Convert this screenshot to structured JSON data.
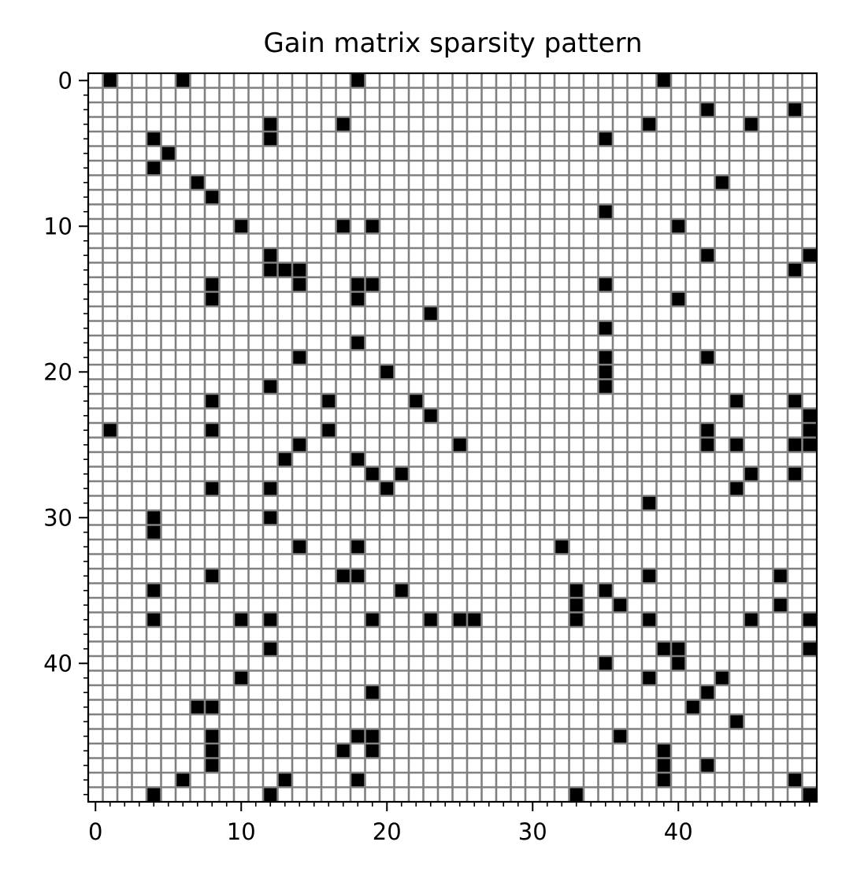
{
  "chart_data": {
    "type": "heatmap",
    "subtype": "sparsity-pattern (spy plot)",
    "title": "Gain matrix sparsity pattern",
    "xlabel": "",
    "ylabel": "",
    "rows": 50,
    "cols": 50,
    "x_ticks": [
      0,
      10,
      20,
      30,
      40
    ],
    "y_ticks": [
      0,
      10,
      20,
      30,
      40
    ],
    "x_minor_ticks_every": 1,
    "y_minor_ticks_every": 1,
    "xlim": [
      -0.5,
      49.5
    ],
    "ylim": [
      49.5,
      -0.5
    ],
    "y_axis_inverted": true,
    "grid": true,
    "colors": {
      "nonzero": "#000000",
      "zero": "#ffffff",
      "grid": "#808080"
    },
    "nonzero_entries": [
      [
        0,
        1
      ],
      [
        0,
        6
      ],
      [
        0,
        18
      ],
      [
        0,
        39
      ],
      [
        2,
        42
      ],
      [
        2,
        48
      ],
      [
        3,
        12
      ],
      [
        3,
        17
      ],
      [
        3,
        38
      ],
      [
        3,
        45
      ],
      [
        4,
        4
      ],
      [
        4,
        12
      ],
      [
        4,
        35
      ],
      [
        5,
        5
      ],
      [
        6,
        4
      ],
      [
        7,
        7
      ],
      [
        7,
        43
      ],
      [
        8,
        8
      ],
      [
        9,
        35
      ],
      [
        10,
        10
      ],
      [
        10,
        17
      ],
      [
        10,
        19
      ],
      [
        10,
        40
      ],
      [
        12,
        12
      ],
      [
        12,
        42
      ],
      [
        12,
        49
      ],
      [
        13,
        12
      ],
      [
        13,
        13
      ],
      [
        13,
        14
      ],
      [
        13,
        48
      ],
      [
        14,
        8
      ],
      [
        14,
        14
      ],
      [
        14,
        18
      ],
      [
        14,
        19
      ],
      [
        14,
        35
      ],
      [
        15,
        8
      ],
      [
        15,
        18
      ],
      [
        15,
        40
      ],
      [
        16,
        23
      ],
      [
        17,
        35
      ],
      [
        18,
        18
      ],
      [
        19,
        14
      ],
      [
        19,
        35
      ],
      [
        19,
        42
      ],
      [
        20,
        20
      ],
      [
        20,
        35
      ],
      [
        21,
        12
      ],
      [
        21,
        35
      ],
      [
        22,
        8
      ],
      [
        22,
        16
      ],
      [
        22,
        22
      ],
      [
        22,
        44
      ],
      [
        22,
        48
      ],
      [
        23,
        23
      ],
      [
        23,
        49
      ],
      [
        24,
        1
      ],
      [
        24,
        8
      ],
      [
        24,
        16
      ],
      [
        24,
        42
      ],
      [
        24,
        49
      ],
      [
        25,
        14
      ],
      [
        25,
        25
      ],
      [
        25,
        42
      ],
      [
        25,
        44
      ],
      [
        25,
        48
      ],
      [
        25,
        49
      ],
      [
        26,
        13
      ],
      [
        26,
        18
      ],
      [
        27,
        19
      ],
      [
        27,
        21
      ],
      [
        27,
        45
      ],
      [
        27,
        48
      ],
      [
        28,
        8
      ],
      [
        28,
        12
      ],
      [
        28,
        20
      ],
      [
        28,
        44
      ],
      [
        29,
        38
      ],
      [
        30,
        4
      ],
      [
        30,
        12
      ],
      [
        31,
        4
      ],
      [
        32,
        14
      ],
      [
        32,
        18
      ],
      [
        32,
        32
      ],
      [
        34,
        8
      ],
      [
        34,
        17
      ],
      [
        34,
        18
      ],
      [
        34,
        38
      ],
      [
        34,
        47
      ],
      [
        35,
        4
      ],
      [
        35,
        21
      ],
      [
        35,
        33
      ],
      [
        35,
        35
      ],
      [
        36,
        33
      ],
      [
        36,
        36
      ],
      [
        36,
        47
      ],
      [
        37,
        4
      ],
      [
        37,
        10
      ],
      [
        37,
        12
      ],
      [
        37,
        19
      ],
      [
        37,
        23
      ],
      [
        37,
        25
      ],
      [
        37,
        26
      ],
      [
        37,
        33
      ],
      [
        37,
        38
      ],
      [
        37,
        45
      ],
      [
        37,
        49
      ],
      [
        39,
        12
      ],
      [
        39,
        39
      ],
      [
        39,
        40
      ],
      [
        39,
        49
      ],
      [
        40,
        35
      ],
      [
        40,
        40
      ],
      [
        41,
        10
      ],
      [
        41,
        38
      ],
      [
        41,
        43
      ],
      [
        42,
        19
      ],
      [
        42,
        42
      ],
      [
        43,
        7
      ],
      [
        43,
        8
      ],
      [
        43,
        41
      ],
      [
        44,
        44
      ],
      [
        45,
        8
      ],
      [
        45,
        18
      ],
      [
        45,
        19
      ],
      [
        45,
        36
      ],
      [
        46,
        8
      ],
      [
        46,
        17
      ],
      [
        46,
        19
      ],
      [
        46,
        39
      ],
      [
        47,
        8
      ],
      [
        47,
        39
      ],
      [
        47,
        42
      ],
      [
        48,
        6
      ],
      [
        48,
        13
      ],
      [
        48,
        18
      ],
      [
        48,
        39
      ],
      [
        48,
        48
      ],
      [
        49,
        4
      ],
      [
        49,
        12
      ],
      [
        49,
        33
      ],
      [
        49,
        49
      ]
    ]
  }
}
